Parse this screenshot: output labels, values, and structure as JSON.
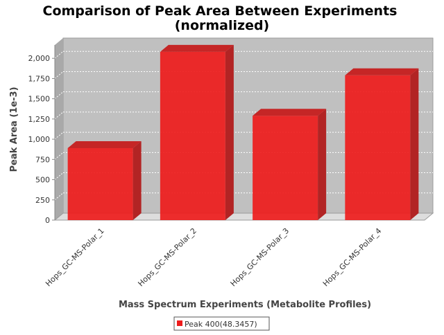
{
  "chart_data": {
    "type": "bar",
    "title": "Comparison of Peak Area Between Experiments",
    "subtitle": "(normalized)",
    "xlabel": "Mass Spectrum Experiments (Metabolite Profiles)",
    "ylabel": "Peak Area (1e-3)",
    "categories": [
      "Hops_GC-MS-Polar_1",
      "Hops_GC-MS-Polar_2",
      "Hops_GC-MS-Polar_3",
      "Hops_GC-MS-Polar_4"
    ],
    "series": [
      {
        "name": "Peak 400(48.3457)",
        "values": [
          890,
          2080,
          1290,
          1790
        ]
      }
    ],
    "ylim": [
      0,
      2250
    ],
    "yticks": [
      "0",
      "250",
      "500",
      "750",
      "1,000",
      "1,250",
      "1,500",
      "1,750",
      "2,000"
    ],
    "grid": true,
    "legend_position": "bottom",
    "colors": {
      "bar": "#ee1c1c",
      "plot_background": "#c0c0c0",
      "floor": "#dddddd"
    }
  }
}
